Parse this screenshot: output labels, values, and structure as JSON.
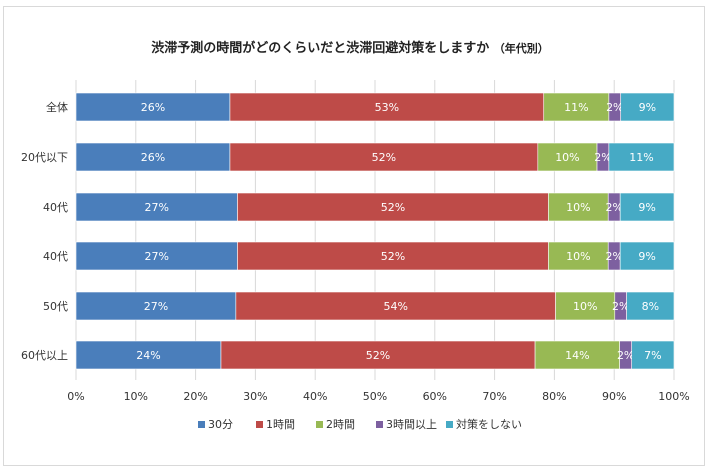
{
  "chart_data": {
    "type": "bar",
    "orientation": "horizontal",
    "stacked": true,
    "title": "渋滞予測の時間がどのくらいだと渋滞回避対策をしますか",
    "subtitle": "（年代別）",
    "categories": [
      "全体",
      "20代以下",
      "40代",
      "40代",
      "50代",
      "60代以上"
    ],
    "series": [
      {
        "name": "30分",
        "color": "#4a7ebb",
        "values": [
          26,
          26,
          27,
          27,
          27,
          24
        ]
      },
      {
        "name": "1時間",
        "color": "#be4b48",
        "values": [
          53,
          52,
          52,
          52,
          54,
          52
        ]
      },
      {
        "name": "2時間",
        "color": "#98b954",
        "values": [
          11,
          10,
          10,
          10,
          10,
          14
        ]
      },
      {
        "name": "3時間以上",
        "color": "#7d60a0",
        "values": [
          2,
          2,
          2,
          2,
          2,
          2
        ]
      },
      {
        "name": "対策をしない",
        "color": "#46aac5",
        "values": [
          9,
          11,
          9,
          9,
          8,
          7
        ]
      }
    ],
    "xlim": [
      0,
      100
    ],
    "xticks": [
      "0%",
      "10%",
      "20%",
      "30%",
      "40%",
      "50%",
      "60%",
      "70%",
      "80%",
      "90%",
      "100%"
    ],
    "xlabel": "",
    "ylabel": "",
    "grid": true,
    "legend": "bottom"
  }
}
